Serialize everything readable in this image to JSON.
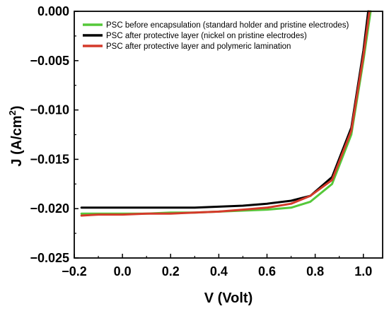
{
  "chart_data": {
    "type": "line",
    "title": "",
    "xlabel": "V (Volt)",
    "ylabel": "J (A/cm",
    "ylabel_sup": "2",
    "ylabel_suffix": ")",
    "xlim": [
      -0.2,
      1.08
    ],
    "ylim": [
      -0.025,
      0.0
    ],
    "xticks": [
      -0.2,
      0.0,
      0.2,
      0.4,
      0.6,
      0.8,
      1.0
    ],
    "xtick_labels": [
      "−0.2",
      "0.0",
      "0.2",
      "0.4",
      "0.6",
      "0.8",
      "1.0"
    ],
    "yticks": [
      0.0,
      -0.005,
      -0.01,
      -0.015,
      -0.02,
      -0.025
    ],
    "ytick_labels": [
      "0.000",
      "−0.005",
      "−0.010",
      "−0.015",
      "−0.020",
      "−0.025"
    ],
    "grid": false,
    "legend_position": "top",
    "series": [
      {
        "name": "PSC  before encapsulation (standard holder and pristine electrodes)",
        "color": "#55c83a",
        "x": [
          -0.17,
          -0.1,
          0.0,
          0.1,
          0.2,
          0.3,
          0.4,
          0.5,
          0.6,
          0.7,
          0.78,
          0.87,
          0.95,
          1.0,
          1.03
        ],
        "y": [
          -0.0205,
          -0.0205,
          -0.0205,
          -0.0205,
          -0.0204,
          -0.0204,
          -0.0203,
          -0.0202,
          -0.0201,
          -0.0199,
          -0.0193,
          -0.0175,
          -0.0125,
          -0.005,
          0.0
        ]
      },
      {
        "name": "PSC after protective layer (nickel on pristine electrodes)",
        "color": "#000000",
        "x": [
          -0.17,
          -0.1,
          0.0,
          0.1,
          0.2,
          0.3,
          0.4,
          0.5,
          0.6,
          0.7,
          0.78,
          0.87,
          0.95,
          1.0,
          1.02
        ],
        "y": [
          -0.0199,
          -0.0199,
          -0.0199,
          -0.0199,
          -0.0199,
          -0.0199,
          -0.0198,
          -0.0197,
          -0.0195,
          -0.0192,
          -0.0187,
          -0.0168,
          -0.0118,
          -0.004,
          0.0
        ]
      },
      {
        "name": "PSC after protective layer and polymeric lamination",
        "color": "#d43a2a",
        "x": [
          -0.17,
          -0.1,
          0.0,
          0.1,
          0.2,
          0.3,
          0.4,
          0.5,
          0.6,
          0.7,
          0.78,
          0.87,
          0.95,
          1.0,
          1.025
        ],
        "y": [
          -0.0207,
          -0.0206,
          -0.0206,
          -0.0205,
          -0.0205,
          -0.0204,
          -0.0203,
          -0.0201,
          -0.0199,
          -0.0195,
          -0.0187,
          -0.0171,
          -0.0121,
          -0.0045,
          0.0
        ]
      }
    ]
  }
}
